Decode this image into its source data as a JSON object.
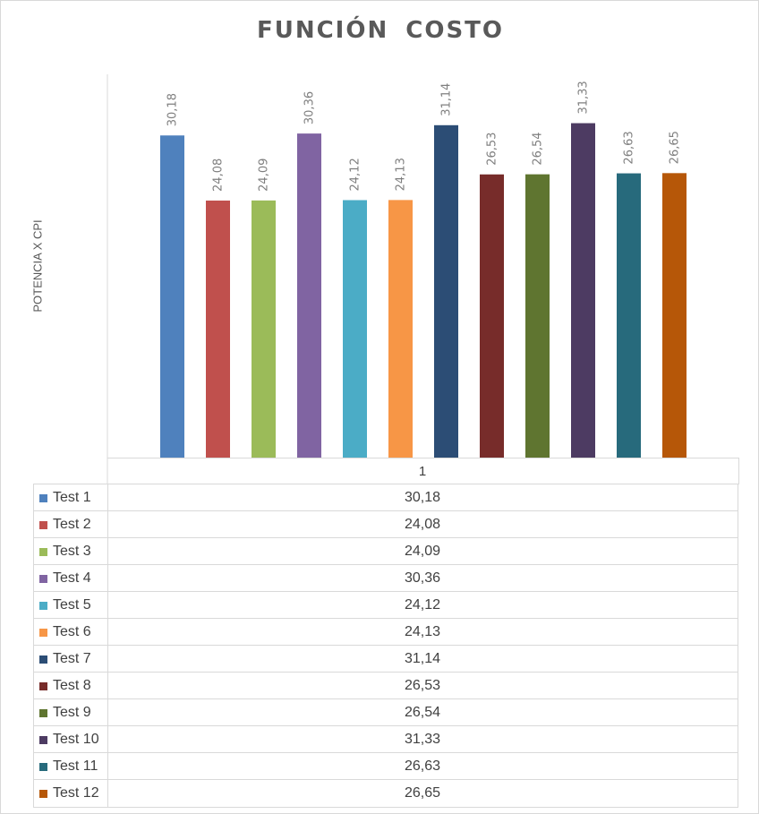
{
  "chart_data": {
    "type": "bar",
    "title": "FUNCIÓN  COSTO",
    "ylabel": "POTENCIA X CPI",
    "xlabel": "",
    "categories": [
      "1"
    ],
    "ylim": [
      0,
      32
    ],
    "grid": false,
    "legend": "data-table",
    "series": [
      {
        "name": "Test 1",
        "value": 30.18,
        "label": "30,18",
        "color": "#4F81BD"
      },
      {
        "name": "Test 2",
        "value": 24.08,
        "label": "24,08",
        "color": "#C0504D"
      },
      {
        "name": "Test 3",
        "value": 24.09,
        "label": "24,09",
        "color": "#9BBB59"
      },
      {
        "name": "Test 4",
        "value": 30.36,
        "label": "30,36",
        "color": "#8064A2"
      },
      {
        "name": "Test 5",
        "value": 24.12,
        "label": "24,12",
        "color": "#4BACC6"
      },
      {
        "name": "Test 6",
        "value": 24.13,
        "label": "24,13",
        "color": "#F79646"
      },
      {
        "name": "Test 7",
        "value": 31.14,
        "label": "31,14",
        "color": "#2C4D75"
      },
      {
        "name": "Test 8",
        "value": 26.53,
        "label": "26,53",
        "color": "#772C2A"
      },
      {
        "name": "Test 9",
        "value": 26.54,
        "label": "26,54",
        "color": "#5F7530"
      },
      {
        "name": "Test 10",
        "value": 31.33,
        "label": "31,33",
        "color": "#4D3B62"
      },
      {
        "name": "Test 11",
        "value": 26.63,
        "label": "26,63",
        "color": "#276A7C"
      },
      {
        "name": "Test 12",
        "value": 26.65,
        "label": "26,65",
        "color": "#B65708"
      }
    ]
  }
}
